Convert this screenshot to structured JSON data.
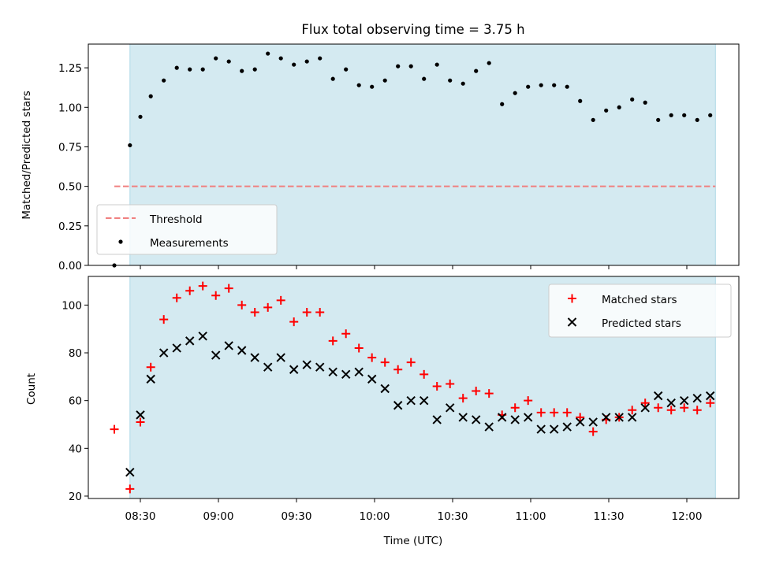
{
  "title": "Flux total observing time = 3.75 h",
  "colors": {
    "band": "#d4eaf1",
    "band_edge": "#add8e6",
    "threshold": "#f08080",
    "matched": "#ff0000",
    "predicted": "#000000"
  },
  "chart_data": [
    {
      "type": "scatter",
      "panel": "top",
      "ylabel": "Matched/Predicted stars",
      "ylim": [
        0.0,
        1.4
      ],
      "yticks": [
        0.0,
        0.25,
        0.5,
        0.75,
        1.0,
        1.25
      ],
      "ytick_labels": [
        "0.00",
        "0.25",
        "0.50",
        "0.75",
        "1.00",
        "1.25"
      ],
      "xlim": [
        490,
        740
      ],
      "xticks": [
        510,
        540,
        570,
        600,
        630,
        660,
        690,
        720
      ],
      "observing_window": [
        506.0,
        731.0
      ],
      "threshold": {
        "value": 0.5,
        "x_range": [
          500,
          731
        ]
      },
      "legend": {
        "position": "lower-left",
        "entries": [
          "Threshold",
          "Measurements"
        ]
      },
      "series": [
        {
          "name": "Measurements",
          "x": [
            500,
            506,
            510,
            514,
            519,
            524,
            529,
            534,
            539,
            544,
            549,
            554,
            559,
            564,
            569,
            574,
            579,
            584,
            589,
            594,
            599,
            604,
            609,
            614,
            619,
            624,
            629,
            634,
            639,
            644,
            649,
            654,
            659,
            664,
            669,
            674,
            679,
            684,
            689,
            694,
            699,
            704,
            709,
            714,
            719,
            724,
            729
          ],
          "y": [
            0.0,
            0.76,
            0.94,
            1.07,
            1.17,
            1.25,
            1.24,
            1.24,
            1.31,
            1.29,
            1.23,
            1.24,
            1.34,
            1.31,
            1.27,
            1.29,
            1.31,
            1.18,
            1.24,
            1.14,
            1.13,
            1.17,
            1.26,
            1.26,
            1.18,
            1.27,
            1.17,
            1.15,
            1.23,
            1.28,
            1.02,
            1.09,
            1.13,
            1.14,
            1.14,
            1.13,
            1.04,
            0.92,
            0.98,
            1.0,
            1.05,
            1.03,
            0.92,
            0.95,
            0.95,
            0.92,
            0.95
          ]
        }
      ]
    },
    {
      "type": "scatter",
      "panel": "bottom",
      "xlabel": "Time (UTC)",
      "ylabel": "Count",
      "ylim": [
        19,
        112
      ],
      "yticks": [
        20,
        40,
        60,
        80,
        100
      ],
      "ytick_labels": [
        "20",
        "40",
        "60",
        "80",
        "100"
      ],
      "xlim": [
        490,
        740
      ],
      "xticks": [
        510,
        540,
        570,
        600,
        630,
        660,
        690,
        720
      ],
      "xtick_labels": [
        "08:30",
        "09:00",
        "09:30",
        "10:00",
        "10:30",
        "11:00",
        "11:30",
        "12:00"
      ],
      "observing_window": [
        506.0,
        731.0
      ],
      "legend": {
        "position": "top-right",
        "entries": [
          "Matched stars",
          "Predicted stars"
        ]
      },
      "series": [
        {
          "name": "Matched stars",
          "marker": "plus",
          "x": [
            500,
            506,
            510,
            514,
            519,
            524,
            529,
            534,
            539,
            544,
            549,
            554,
            559,
            564,
            569,
            574,
            579,
            584,
            589,
            594,
            599,
            604,
            609,
            614,
            619,
            624,
            629,
            634,
            639,
            644,
            649,
            654,
            659,
            664,
            669,
            674,
            679,
            684,
            689,
            694,
            699,
            704,
            709,
            714,
            719,
            724,
            729
          ],
          "y": [
            48,
            23,
            51,
            74,
            94,
            103,
            106,
            108,
            104,
            107,
            100,
            97,
            99,
            102,
            93,
            97,
            97,
            85,
            88,
            82,
            78,
            76,
            73,
            76,
            71,
            66,
            67,
            61,
            64,
            63,
            54,
            57,
            60,
            55,
            55,
            55,
            53,
            47,
            52,
            53,
            56,
            59,
            57,
            56,
            57,
            56,
            59
          ]
        },
        {
          "name": "Predicted stars",
          "marker": "x",
          "x": [
            506,
            510,
            514,
            519,
            524,
            529,
            534,
            539,
            544,
            549,
            554,
            559,
            564,
            569,
            574,
            579,
            584,
            589,
            594,
            599,
            604,
            609,
            614,
            619,
            624,
            629,
            634,
            639,
            644,
            649,
            654,
            659,
            664,
            669,
            674,
            679,
            684,
            689,
            694,
            699,
            704,
            709,
            714,
            719,
            724,
            729
          ],
          "y": [
            30,
            54,
            69,
            80,
            82,
            85,
            87,
            79,
            83,
            81,
            78,
            74,
            78,
            73,
            75,
            74,
            72,
            71,
            72,
            69,
            65,
            58,
            60,
            60,
            52,
            57,
            53,
            52,
            49,
            53,
            52,
            53,
            48,
            48,
            49,
            51,
            51,
            53,
            53,
            53,
            57,
            62,
            59,
            60,
            61,
            62
          ]
        }
      ]
    }
  ]
}
